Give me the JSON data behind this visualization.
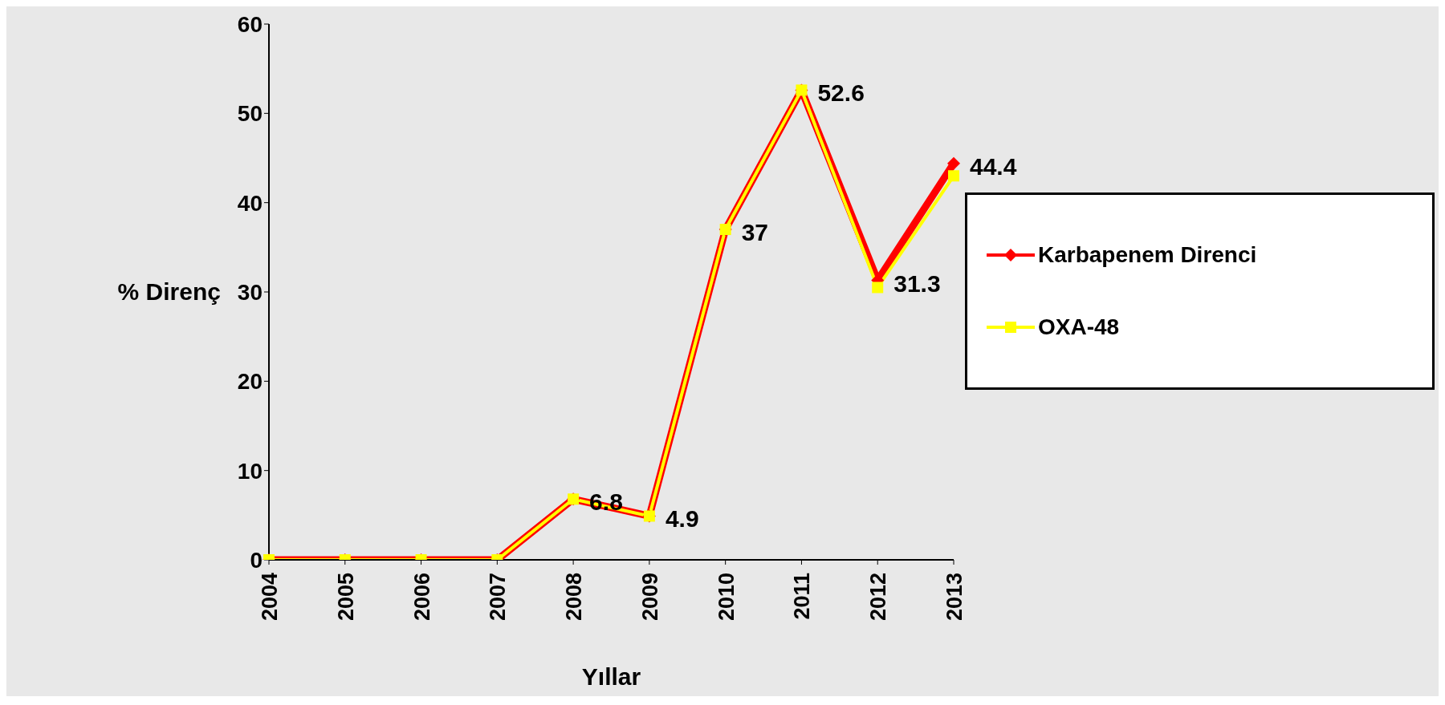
{
  "chart_data": {
    "type": "line",
    "xlabel": "Yıllar",
    "ylabel": "% Direnç",
    "categories": [
      "2004",
      "2005",
      "2006",
      "2007",
      "2008",
      "2009",
      "2010",
      "2011",
      "2012",
      "2013"
    ],
    "series": [
      {
        "name": "Karbapenem Direnci",
        "color": "#ff0000",
        "marker": "diamond",
        "values": [
          0,
          0,
          0,
          0,
          6.8,
          4.9,
          37,
          52.6,
          31.3,
          44.4
        ],
        "value_labels": [
          null,
          null,
          null,
          null,
          "6.8",
          "4.9",
          "37",
          "52.6",
          "31.3",
          "44.4"
        ]
      },
      {
        "name": "OXA-48",
        "color": "#ffff00",
        "marker": "square",
        "values": [
          0,
          0,
          0,
          0,
          6.8,
          4.9,
          37,
          52.6,
          30.5,
          43
        ]
      }
    ],
    "ylim": [
      0,
      60
    ],
    "yticks": [
      0,
      10,
      20,
      30,
      40,
      50,
      60
    ],
    "grid": false,
    "legend": "right",
    "line_style": "solid"
  }
}
